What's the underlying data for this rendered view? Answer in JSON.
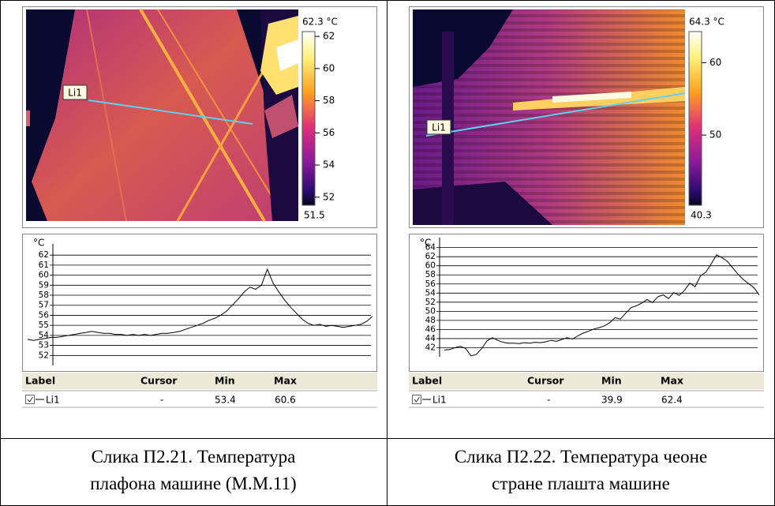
{
  "figures": [
    {
      "thermogram": {
        "scale_max": {
          "value": 62.3,
          "label": "62.3 °C"
        },
        "scale_ticks": [
          62,
          60,
          58,
          56,
          54,
          52
        ],
        "scale_min": 51.5,
        "line_label": "Li1"
      },
      "profile": {
        "unit": "°C",
        "ylim": [
          51,
          62.8
        ],
        "yticks": [
          52,
          53,
          54,
          55,
          56,
          57,
          58,
          59,
          60,
          61,
          62
        ],
        "values": [
          53.6,
          53.5,
          53.6,
          53.7,
          53.8,
          53.8,
          53.9,
          54.0,
          54.1,
          54.2,
          54.3,
          54.4,
          54.3,
          54.2,
          54.2,
          54.1,
          54.1,
          54.0,
          54.1,
          54.0,
          54.1,
          54.0,
          54.1,
          54.2,
          54.2,
          54.3,
          54.4,
          54.6,
          54.8,
          55.0,
          55.2,
          55.5,
          55.7,
          56.0,
          56.4,
          57.0,
          57.6,
          58.3,
          58.8,
          58.6,
          59.0,
          60.6,
          59.2,
          58.3,
          57.5,
          56.8,
          56.2,
          55.6,
          55.2,
          55.0,
          55.1,
          54.9,
          55.0,
          54.9,
          54.8,
          54.9,
          55.0,
          55.1,
          55.4,
          55.9
        ]
      },
      "table": {
        "columns": [
          "Label",
          "Cursor",
          "Min",
          "Max"
        ],
        "row": [
          "Li1",
          "-",
          "53.4",
          "60.6"
        ]
      },
      "caption": "Слика П2.21. Температура плафона машине (М.М.11)"
    },
    {
      "thermogram": {
        "scale_max": {
          "value": 64.3,
          "label": "64.3 °C"
        },
        "scale_ticks": [
          60,
          50
        ],
        "scale_min": 40.3,
        "line_label": "Li1"
      },
      "profile": {
        "unit": "°C",
        "ylim": [
          40,
          65.5
        ],
        "yticks": [
          42,
          44,
          46,
          48,
          50,
          52,
          54,
          56,
          58,
          60,
          62,
          64
        ],
        "values": [
          41.5,
          41.6,
          42.0,
          42.3,
          41.8,
          40.2,
          40.5,
          41.8,
          43.5,
          44.2,
          43.6,
          43.2,
          43.0,
          43.0,
          42.9,
          43.1,
          43.0,
          43.2,
          43.1,
          43.3,
          43.6,
          43.4,
          43.8,
          44.2,
          43.9,
          44.6,
          45.2,
          45.6,
          46.1,
          46.4,
          46.8,
          47.5,
          48.6,
          48.3,
          49.6,
          50.8,
          51.2,
          51.8,
          52.6,
          51.9,
          53.2,
          53.6,
          52.8,
          54.1,
          53.5,
          54.6,
          56.2,
          55.4,
          57.8,
          58.6,
          60.4,
          62.4,
          61.8,
          61.0,
          59.6,
          58.2,
          57.0,
          56.1,
          55.2,
          53.6
        ]
      },
      "table": {
        "columns": [
          "Label",
          "Cursor",
          "Min",
          "Max"
        ],
        "row": [
          "Li1",
          "-",
          "39.9",
          "62.4"
        ]
      },
      "caption": "Слика П2.22. Температура чеоне стране плашта машине"
    }
  ]
}
